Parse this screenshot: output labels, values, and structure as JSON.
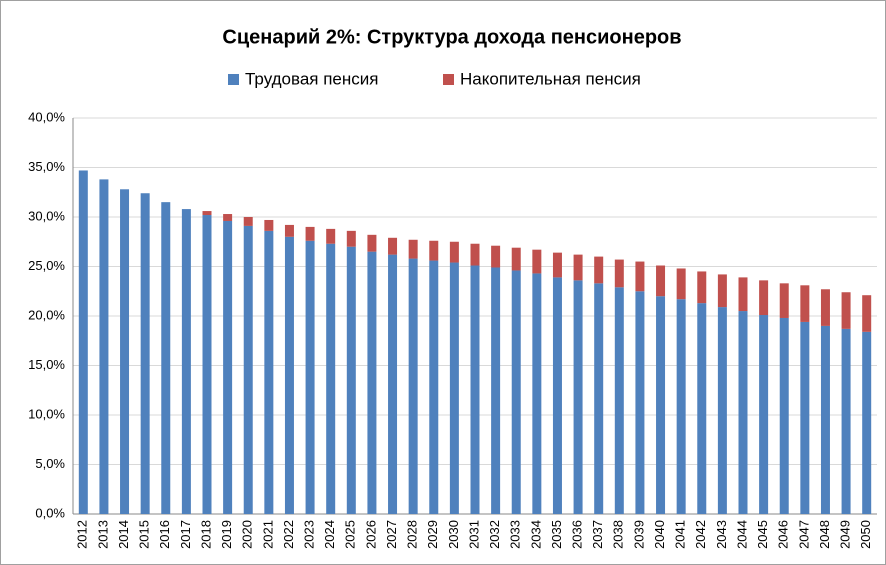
{
  "chart_data": {
    "type": "stacked_bar",
    "title": "Сценарий 2%: Структура дохода пенсионеров",
    "categories": [
      "2012",
      "2013",
      "2014",
      "2015",
      "2016",
      "2017",
      "2018",
      "2019",
      "2020",
      "2021",
      "2022",
      "2023",
      "2024",
      "2025",
      "2026",
      "2027",
      "2028",
      "2029",
      "2030",
      "2031",
      "2032",
      "2033",
      "2034",
      "2035",
      "2036",
      "2037",
      "2038",
      "2039",
      "2040",
      "2041",
      "2042",
      "2043",
      "2044",
      "2045",
      "2046",
      "2047",
      "2048",
      "2049",
      "2050"
    ],
    "series": [
      {
        "name": "Трудовая пенсия",
        "color": "#4f81bd",
        "values": [
          34.7,
          33.8,
          32.8,
          32.4,
          31.5,
          30.8,
          30.2,
          29.6,
          29.1,
          28.6,
          28.0,
          27.6,
          27.3,
          27.0,
          26.5,
          26.2,
          25.8,
          25.6,
          25.4,
          25.1,
          24.9,
          24.6,
          24.3,
          23.9,
          23.6,
          23.3,
          22.9,
          22.5,
          22.0,
          21.7,
          21.3,
          20.9,
          20.5,
          20.1,
          19.8,
          19.4,
          19.0,
          18.7,
          18.4
        ]
      },
      {
        "name": "Накопительная пенсия",
        "color": "#c0504d",
        "values": [
          0,
          0,
          0,
          0,
          0,
          0,
          0.4,
          0.7,
          0.9,
          1.1,
          1.2,
          1.4,
          1.5,
          1.6,
          1.7,
          1.7,
          1.9,
          2.0,
          2.1,
          2.2,
          2.2,
          2.3,
          2.4,
          2.5,
          2.6,
          2.7,
          2.8,
          3.0,
          3.1,
          3.1,
          3.2,
          3.3,
          3.4,
          3.5,
          3.5,
          3.7,
          3.7,
          3.7,
          3.7
        ]
      }
    ],
    "ylim": [
      0,
      40
    ],
    "yticks": [
      {
        "value": 0,
        "label": "0,0%"
      },
      {
        "value": 5,
        "label": "5,0%"
      },
      {
        "value": 10,
        "label": "10,0%"
      },
      {
        "value": 15,
        "label": "15,0%"
      },
      {
        "value": 20,
        "label": "20,0%"
      },
      {
        "value": 25,
        "label": "25,0%"
      },
      {
        "value": 30,
        "label": "30,0%"
      },
      {
        "value": 35,
        "label": "35,0%"
      },
      {
        "value": 40,
        "label": "40,0%"
      }
    ],
    "grid": true,
    "legend": "top"
  }
}
